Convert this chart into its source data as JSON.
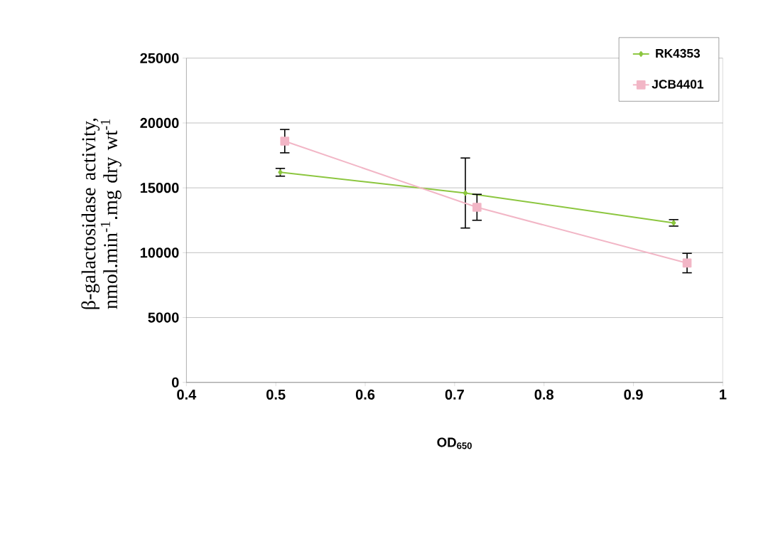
{
  "chart_data": {
    "type": "line",
    "xlabel": "OD$_{650}$",
    "ylabel": "β-galactosidase activity, nmol.min$^{-1}$.mg dry wt$^{-1}$",
    "xlim": [
      0.4,
      1
    ],
    "xticks": [
      0.4,
      0.6,
      0.8,
      {
        "value": 0.5,
        "label": "0.5"
      },
      {
        "value": 0.7,
        "label": "0.7"
      },
      {
        "value": 0.9,
        "label": "0.9"
      },
      1
    ],
    "ylim": [
      0,
      25000
    ],
    "yticks": [
      0,
      5000,
      10000,
      15000,
      20000,
      25000
    ],
    "grid": "y",
    "legend": "top right",
    "series": [
      {
        "name": "RK4353",
        "color": "#8cc63f",
        "marker": "diamond",
        "x": [
          0.505,
          0.712,
          0.945
        ],
        "values": [
          16200,
          14600,
          12300
        ],
        "errors": [
          300,
          2700,
          250
        ]
      },
      {
        "name": "JCB4401",
        "color": "#f2b6c6",
        "marker": "square",
        "x": [
          0.51,
          0.725,
          0.96
        ],
        "values": [
          18600,
          13500,
          9200
        ],
        "errors": [
          900,
          1000,
          750
        ]
      }
    ]
  }
}
